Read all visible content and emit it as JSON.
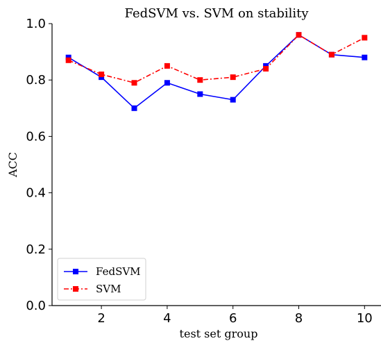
{
  "chart_data": {
    "type": "line",
    "title": "FedSVM vs. SVM on stability",
    "xlabel": "test set group",
    "ylabel": "ACC",
    "x": [
      1,
      2,
      3,
      4,
      5,
      6,
      7,
      8,
      9,
      10
    ],
    "xticks": [
      2,
      4,
      6,
      8,
      10
    ],
    "yticks": [
      0.0,
      0.2,
      0.4,
      0.6,
      0.8,
      1.0
    ],
    "xlim": [
      0.5,
      10.5
    ],
    "ylim": [
      0.0,
      1.0
    ],
    "grid": false,
    "legend_position": "bottom-left",
    "series": [
      {
        "name": "FedSVM",
        "color": "#0000ff",
        "line_style": "solid",
        "marker": "square",
        "values": [
          0.88,
          0.81,
          0.7,
          0.79,
          0.75,
          0.73,
          0.85,
          0.96,
          0.89,
          0.88
        ]
      },
      {
        "name": "SVM",
        "color": "#ff0000",
        "line_style": "dashdot",
        "marker": "square",
        "values": [
          0.87,
          0.82,
          0.79,
          0.85,
          0.8,
          0.81,
          0.84,
          0.96,
          0.89,
          0.95
        ]
      }
    ]
  }
}
